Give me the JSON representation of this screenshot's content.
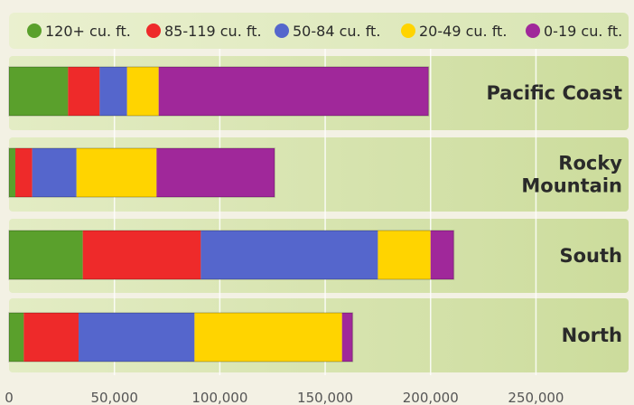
{
  "chart_data": {
    "type": "bar",
    "orientation": "horizontal",
    "stacked": true,
    "categories": [
      [
        "Pacific Coast"
      ],
      [
        "Rocky",
        "Mountain"
      ],
      [
        "South"
      ],
      [
        "North"
      ]
    ],
    "series": [
      {
        "name": "120+ cu. ft.",
        "color": "#5aa02c",
        "values": [
          28000,
          3000,
          35000,
          7000
        ]
      },
      {
        "name": "85-119 cu. ft.",
        "color": "#ee2a2a",
        "values": [
          15000,
          8000,
          56000,
          26000
        ]
      },
      {
        "name": "50-84 cu. ft.",
        "color": "#5566cc",
        "values": [
          13000,
          21000,
          84000,
          55000
        ]
      },
      {
        "name": "20-49 cu. ft.",
        "color": "#ffd400",
        "values": [
          15000,
          38000,
          25000,
          70000
        ]
      },
      {
        "name": "0-19 cu. ft.",
        "color": "#a0289a",
        "values": [
          128000,
          56000,
          11000,
          5000
        ]
      }
    ],
    "xlim": [
      0,
      300000
    ],
    "xticks": [
      0,
      50000,
      100000,
      150000,
      200000,
      250000
    ],
    "xtick_labels": [
      "0",
      "50,000",
      "100,000",
      "150,000",
      "200,000",
      "250,000"
    ],
    "grid": "vertical",
    "legend_position": "top"
  }
}
